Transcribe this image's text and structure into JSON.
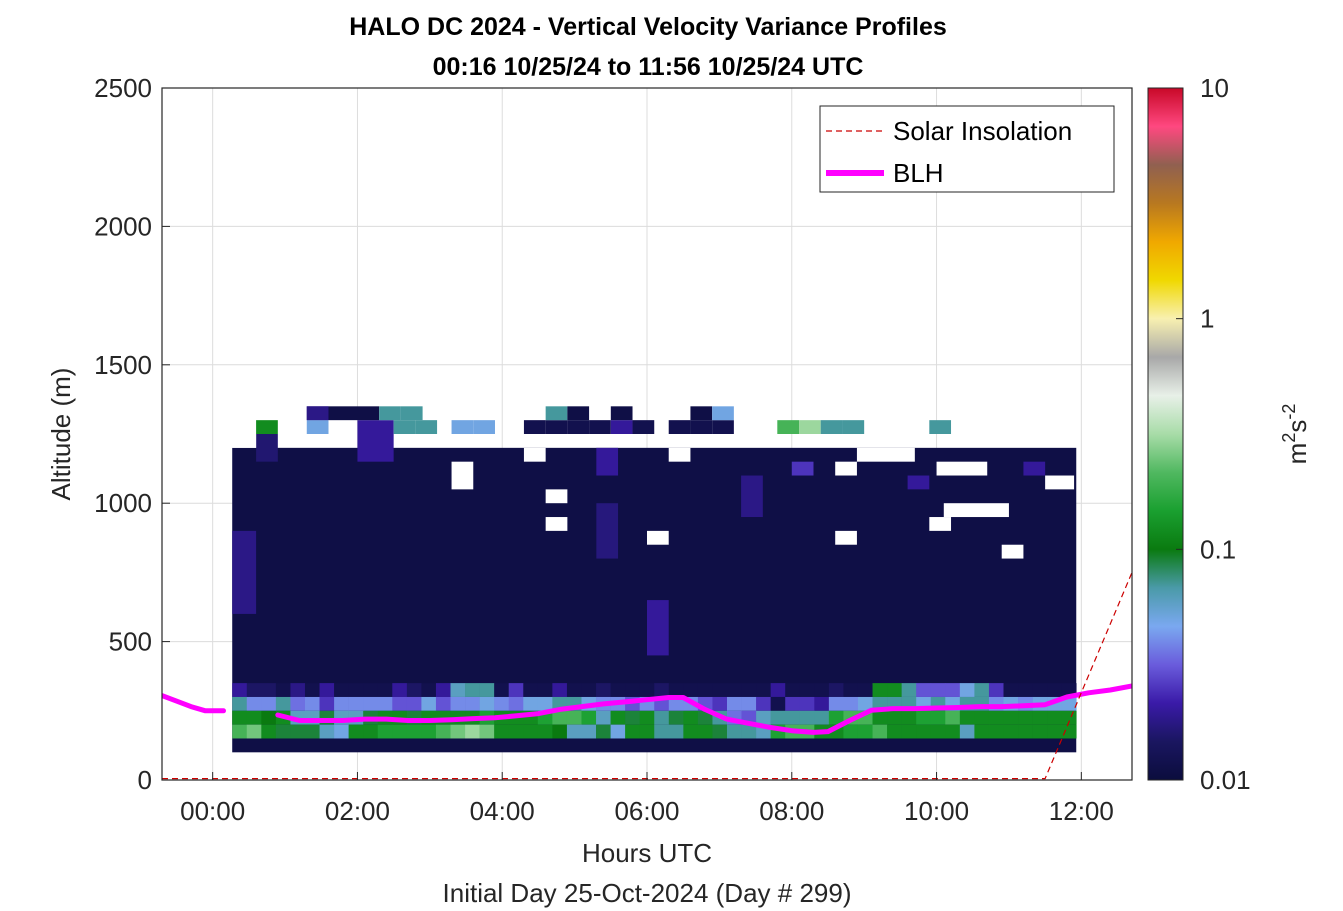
{
  "chart_data": {
    "type": "heatmap",
    "title": "HALO DC 2024 - Vertical Velocity Variance Profiles",
    "subtitle": "00:16 10/25/24 to 11:56 10/25/24  UTC",
    "xlabel": "Hours UTC",
    "xlabel2": "Initial Day 25-Oct-2024 (Day # 299)",
    "ylabel": "Altitude (m)",
    "xlim": [
      -0.7,
      12.7
    ],
    "ylim": [
      0,
      2500
    ],
    "x_ticks": [
      0,
      2,
      4,
      6,
      8,
      10,
      12
    ],
    "x_tick_labels": [
      "00:00",
      "02:00",
      "04:00",
      "06:00",
      "08:00",
      "10:00",
      "12:00"
    ],
    "y_ticks": [
      0,
      500,
      1000,
      1500,
      2000,
      2500
    ],
    "y_tick_labels": [
      "0",
      "500",
      "1000",
      "1500",
      "2000",
      "2500"
    ],
    "grid": true,
    "legend_position": "top-right",
    "legend": [
      {
        "label": "Solar Insolation",
        "style": "dashed",
        "color": "#cc0000"
      },
      {
        "label": "BLH",
        "style": "solid",
        "color": "#ff00ff"
      }
    ],
    "colorbar": {
      "label_base": "m",
      "label_sup1": "2",
      "label_mid": "s",
      "label_sup2": "-2",
      "scale": "log",
      "range": [
        0.01,
        10
      ],
      "ticks": [
        0.01,
        0.1,
        1,
        10
      ],
      "tick_labels": [
        "0.01",
        "0.1",
        "1",
        "10"
      ],
      "colors": [
        "#0b0d3d",
        "#1a1660",
        "#3a1aa8",
        "#6a5cdc",
        "#7aa8f0",
        "#4a9aa8",
        "#0a7a10",
        "#1aa030",
        "#50b860",
        "#a8dca8",
        "#e8f0e8",
        "#a8a8a8",
        "#f8f0b0",
        "#f0d800",
        "#f0a800",
        "#b87820",
        "#906050",
        "#ff4880",
        "#c80828"
      ]
    },
    "heatmap": {
      "x_start_hours": 0.27,
      "column_width_hours": 0.2,
      "y_start_m": 100,
      "row_height_m": 50,
      "value_unit": "m2s-2",
      "note_cells": "values approximated from color; null = no data",
      "background_value": 0.011,
      "blocks": [
        {
          "hours": [
            0.27,
            11.93
          ],
          "alt": [
            100,
            1200
          ],
          "value": 0.011
        },
        {
          "hours": [
            0.27,
            0.6
          ],
          "alt": [
            600,
            900
          ],
          "value": 0.018
        },
        {
          "hours": [
            0.6,
            0.9
          ],
          "alt": [
            1150,
            1250
          ],
          "value": 0.016
        },
        {
          "hours": [
            1.3,
            1.6
          ],
          "alt": [
            1300,
            1350
          ],
          "value": 0.018
        },
        {
          "hours": [
            2.0,
            2.5
          ],
          "alt": [
            1150,
            1250
          ],
          "value": 0.02
        },
        {
          "hours": [
            5.3,
            5.6
          ],
          "alt": [
            800,
            1000
          ],
          "value": 0.017
        },
        {
          "hours": [
            5.3,
            5.6
          ],
          "alt": [
            1100,
            1200
          ],
          "value": 0.02
        },
        {
          "hours": [
            6.0,
            6.3
          ],
          "alt": [
            450,
            650
          ],
          "value": 0.02
        },
        {
          "hours": [
            7.3,
            7.6
          ],
          "alt": [
            950,
            1100
          ],
          "value": 0.018
        },
        {
          "hours": [
            8.0,
            8.3
          ],
          "alt": [
            1100,
            1150
          ],
          "value": 0.025
        },
        {
          "hours": [
            9.6,
            9.9
          ],
          "alt": [
            1050,
            1100
          ],
          "value": 0.02
        },
        {
          "hours": [
            11.2,
            11.5
          ],
          "alt": [
            1100,
            1150
          ],
          "value": 0.02
        }
      ],
      "low_rows": [
        {
          "alt": [
            300,
            350
          ],
          "values": [
            0.02,
            0.015,
            0.015,
            0.012,
            0.018,
            0.012,
            0.02,
            0.012,
            0.012,
            0.012,
            0.012,
            0.02,
            0.015,
            0.012,
            0.02,
            0.06,
            0.07,
            0.07,
            0.012,
            0.025,
            0.012,
            0.012,
            0.02,
            0.012,
            0.012,
            0.015,
            0.012,
            0.012,
            0.012,
            0.015,
            0.012,
            0.012,
            0.012,
            0.012,
            0.012,
            0.012,
            0.012,
            0.02,
            0.012,
            0.012,
            0.012,
            0.015,
            0.012,
            0.012,
            0.12,
            0.12,
            0.07,
            0.03,
            0.03,
            0.03,
            0.05,
            0.07,
            0.025,
            0.012,
            0.012,
            0.012,
            0.012,
            0.012
          ]
        },
        {
          "alt": [
            250,
            300
          ],
          "values": [
            0.07,
            0.04,
            0.04,
            0.07,
            0.035,
            0.04,
            0.025,
            0.04,
            0.04,
            0.04,
            0.04,
            0.03,
            0.03,
            0.05,
            0.03,
            0.04,
            0.04,
            0.05,
            0.04,
            0.035,
            0.05,
            0.05,
            0.07,
            0.07,
            0.05,
            0.04,
            0.04,
            0.03,
            0.04,
            0.03,
            0.04,
            0.04,
            0.03,
            0.025,
            0.04,
            0.04,
            0.025,
            0.012,
            0.025,
            0.025,
            0.02,
            0.04,
            0.04,
            0.05,
            0.07,
            0.07,
            0.07,
            0.05,
            0.07,
            0.05,
            0.07,
            0.07,
            0.04,
            0.05,
            0.04,
            0.05,
            0.05,
            0.05
          ]
        },
        {
          "alt": [
            200,
            250
          ],
          "values": [
            0.12,
            0.12,
            0.1,
            0.12,
            0.06,
            0.06,
            0.09,
            0.06,
            0.06,
            0.09,
            0.12,
            0.12,
            0.09,
            0.12,
            0.12,
            0.12,
            0.12,
            0.15,
            0.12,
            0.12,
            0.12,
            0.15,
            0.2,
            0.2,
            0.15,
            0.06,
            0.12,
            0.09,
            0.12,
            0.07,
            0.09,
            0.12,
            0.09,
            0.07,
            0.035,
            0.03,
            0.06,
            0.07,
            0.07,
            0.07,
            0.07,
            0.15,
            0.2,
            0.2,
            0.12,
            0.12,
            0.12,
            0.15,
            0.15,
            0.2,
            0.12,
            0.12,
            0.12,
            0.12,
            0.12,
            0.12,
            0.12,
            0.12
          ]
        },
        {
          "alt": [
            150,
            200
          ],
          "values": [
            0.2,
            0.25,
            0.12,
            0.09,
            0.09,
            0.09,
            0.06,
            0.05,
            0.12,
            0.12,
            0.15,
            0.15,
            0.15,
            0.15,
            0.2,
            0.25,
            0.3,
            0.25,
            0.12,
            0.12,
            0.12,
            0.12,
            0.1,
            0.06,
            0.06,
            0.09,
            0.05,
            0.12,
            0.12,
            0.07,
            0.07,
            0.12,
            0.12,
            0.09,
            0.07,
            0.07,
            0.06,
            0.15,
            0.2,
            0.2,
            0.12,
            0.12,
            0.15,
            0.15,
            0.2,
            0.12,
            0.12,
            0.12,
            0.12,
            0.12,
            0.06,
            0.12,
            0.12,
            0.12,
            0.12,
            0.12,
            0.12,
            0.12
          ]
        }
      ]
    },
    "series": [
      {
        "name": "BLH",
        "x": [
          -0.7,
          -0.5,
          -0.3,
          -0.1,
          0.15,
          0.6,
          0.9,
          1.2,
          1.5,
          1.8,
          2.1,
          2.4,
          2.7,
          3.0,
          3.3,
          3.6,
          3.9,
          4.2,
          4.5,
          4.8,
          5.1,
          5.4,
          5.7,
          6.0,
          6.3,
          6.5,
          6.8,
          7.1,
          7.4,
          7.7,
          8.0,
          8.3,
          8.5,
          8.8,
          9.1,
          9.4,
          9.7,
          10.0,
          10.3,
          10.6,
          10.9,
          11.2,
          11.5,
          11.8,
          12.1,
          12.4,
          12.7
        ],
        "y": [
          305,
          285,
          265,
          250,
          250,
          null,
          235,
          215,
          215,
          215,
          220,
          220,
          215,
          215,
          218,
          222,
          225,
          232,
          240,
          255,
          265,
          275,
          282,
          290,
          298,
          298,
          255,
          220,
          205,
          190,
          178,
          172,
          175,
          215,
          252,
          258,
          258,
          260,
          262,
          265,
          265,
          268,
          272,
          300,
          315,
          325,
          340
        ]
      },
      {
        "name": "Solar Insolation",
        "x": [
          -0.7,
          11.5,
          12.7
        ],
        "y": [
          5,
          5,
          750
        ]
      }
    ]
  }
}
